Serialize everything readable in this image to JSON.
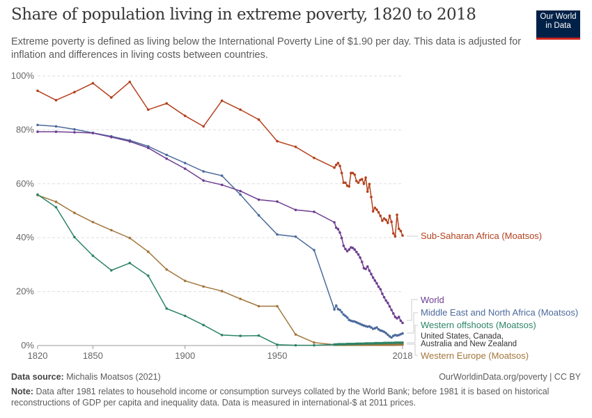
{
  "header": {
    "title": "Share of population living in extreme poverty, 1820 to 2018",
    "subtitle": "Extreme poverty is defined as living below the International Poverty Line of $1.90 per day. This data is adjusted for inflation and differences in living costs between countries.",
    "logo_line1": "Our World",
    "logo_line2": "in Data"
  },
  "footer": {
    "source_label": "Data source:",
    "source": "Michalis Moatsos (2021)",
    "url": "OurWorldinData.org/poverty | CC BY",
    "note_label": "Note:",
    "note": "Data after 1981 relates to household income or consumption surveys collated by the World Bank; before 1981 it is based on historical reconstructions of GDP per capita and inequality data. Data is measured in international-$ at 2011 prices."
  },
  "chart_data": {
    "type": "line",
    "title": "Share of population living in extreme poverty, 1820 to 2018",
    "xlim": [
      1820,
      2018
    ],
    "ylim": [
      0,
      100
    ],
    "x_ticks": [
      "1820",
      "1850",
      "1900",
      "1950",
      "2018"
    ],
    "y_ticks": [
      "0%",
      "20%",
      "40%",
      "60%",
      "80%",
      "100%"
    ],
    "grid": "horizontal dashed",
    "legend": "right, inline labels",
    "x": [
      1820,
      1830,
      1840,
      1850,
      1860,
      1870,
      1880,
      1890,
      1900,
      1910,
      1920,
      1930,
      1940,
      1950,
      1960,
      1970,
      1981,
      1982,
      1983,
      1984,
      1985,
      1986,
      1987,
      1988,
      1989,
      1990,
      1991,
      1992,
      1993,
      1994,
      1995,
      1996,
      1997,
      1998,
      1999,
      2000,
      2001,
      2002,
      2003,
      2004,
      2005,
      2006,
      2007,
      2008,
      2009,
      2010,
      2011,
      2012,
      2013,
      2014,
      2015,
      2016,
      2017,
      2018
    ],
    "series": [
      {
        "name": "Sub-Saharan Africa (Moatsos)",
        "color": "#b4401d",
        "values": [
          94.5,
          91,
          94,
          97.3,
          92,
          97.8,
          87.5,
          89.8,
          85.2,
          81.3,
          90.8,
          87.5,
          83.8,
          75.8,
          73.7,
          69.6,
          66.0,
          67.0,
          67.7,
          66.6,
          64.0,
          60.4,
          60.4,
          59.3,
          59.0,
          64.0,
          64.0,
          63.4,
          61.0,
          60.4,
          61.4,
          61.7,
          60.0,
          62.3,
          57.1,
          59.9,
          55.1,
          49.8,
          51.1,
          50.4,
          49.4,
          48.1,
          46.3,
          47.1,
          46.6,
          45.5,
          48.1,
          45.9,
          41.6,
          40.5,
          48.5,
          43.3,
          42.5,
          40.8
        ]
      },
      {
        "name": "World",
        "color": "#6d3e91",
        "values": [
          79.3,
          79.3,
          79.1,
          78.8,
          77.3,
          75.7,
          73.3,
          69.3,
          65.6,
          61.2,
          59.6,
          57.3,
          54.1,
          53.4,
          50.3,
          49.6,
          45.7,
          43.7,
          43.2,
          41.9,
          39.9,
          37.0,
          35.8,
          35.0,
          35.6,
          36.4,
          36.2,
          35.6,
          34.7,
          33.8,
          32.6,
          31.0,
          28.7,
          28.4,
          29.3,
          27.8,
          26.5,
          25.2,
          24.1,
          23.1,
          21.8,
          20.9,
          19.2,
          17.9,
          16.7,
          15.8,
          14.5,
          13.2,
          11.9,
          10.6,
          10.1,
          10.6,
          9.2,
          8.4
        ]
      },
      {
        "name": "Middle East and North Africa (Moatsos)",
        "color": "#4c6a9c",
        "values": [
          81.8,
          81.3,
          80.2,
          78.9,
          77.6,
          76.1,
          73.9,
          70.7,
          67.7,
          64.6,
          63.0,
          56.0,
          48.3,
          41.2,
          40.4,
          35.4,
          13.4,
          14.8,
          13.5,
          13.2,
          12.4,
          11.5,
          11.0,
          10.4,
          9.5,
          9.2,
          9.0,
          8.9,
          8.6,
          8.3,
          8.0,
          7.7,
          7.4,
          7.2,
          7.0,
          7.1,
          6.7,
          6.2,
          6.4,
          6.7,
          6.0,
          5.6,
          5.4,
          5.1,
          4.6,
          4.0,
          3.4,
          3.0,
          3.6,
          3.9,
          3.7,
          3.9,
          4.2,
          4.5
        ]
      },
      {
        "name": "Western offshoots (Moatsos)",
        "note": "United States, Canada, Australia and New Zealand",
        "color": "#2c8465",
        "values": [
          56.0,
          51.3,
          40.2,
          33.3,
          27.9,
          30.6,
          25.9,
          13.7,
          11.0,
          7.6,
          3.9,
          3.6,
          3.7,
          0.3,
          0.1,
          0.1,
          0.4,
          0.4,
          0.5,
          0.5,
          0.5,
          0.5,
          0.5,
          0.6,
          0.6,
          0.6,
          0.6,
          0.6,
          0.7,
          0.7,
          0.7,
          0.7,
          0.7,
          0.8,
          0.8,
          0.8,
          0.8,
          0.8,
          0.9,
          0.9,
          0.9,
          0.9,
          0.9,
          1.0,
          1.0,
          1.0,
          1.0,
          1.0,
          1.0,
          1.1,
          1.1,
          1.1,
          1.1,
          1.1
        ]
      },
      {
        "name": "Western Europe (Moatsos)",
        "color": "#a2763c",
        "values": [
          55.8,
          53.3,
          49.2,
          45.8,
          42.8,
          39.9,
          34.8,
          28.2,
          24.0,
          21.9,
          20.2,
          17.3,
          14.6,
          14.6,
          4.1,
          1.1,
          0.3,
          0.3,
          0.3,
          0.3,
          0.3,
          0.3,
          0.3,
          0.3,
          0.3,
          0.3,
          0.3,
          0.3,
          0.3,
          0.3,
          0.3,
          0.3,
          0.3,
          0.3,
          0.3,
          0.3,
          0.3,
          0.3,
          0.3,
          0.3,
          0.3,
          0.3,
          0.3,
          0.3,
          0.3,
          0.3,
          0.3,
          0.3,
          0.3,
          0.3,
          0.4,
          0.4,
          0.4,
          0.4
        ]
      }
    ]
  }
}
